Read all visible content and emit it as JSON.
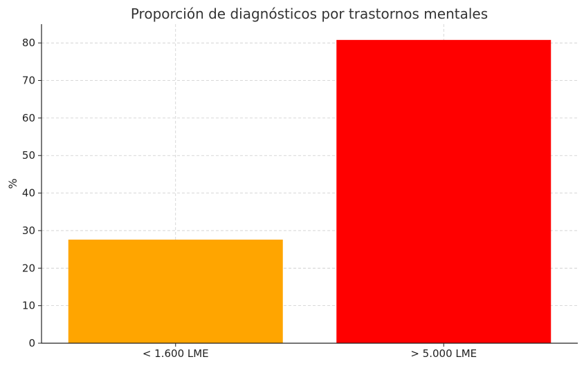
{
  "chart_data": {
    "type": "bar",
    "title": "Proporción de diagnósticos por trastornos mentales",
    "xlabel": "",
    "ylabel": "%",
    "categories": [
      "< 1.600 LME",
      "> 5.000 LME"
    ],
    "values": [
      27.6,
      80.8
    ],
    "colors": [
      "#FFA500",
      "#FF0000"
    ],
    "ylim": [
      0,
      85
    ],
    "yticks": [
      0,
      10,
      20,
      30,
      40,
      50,
      60,
      70,
      80
    ],
    "grid": true,
    "legend": "none"
  }
}
